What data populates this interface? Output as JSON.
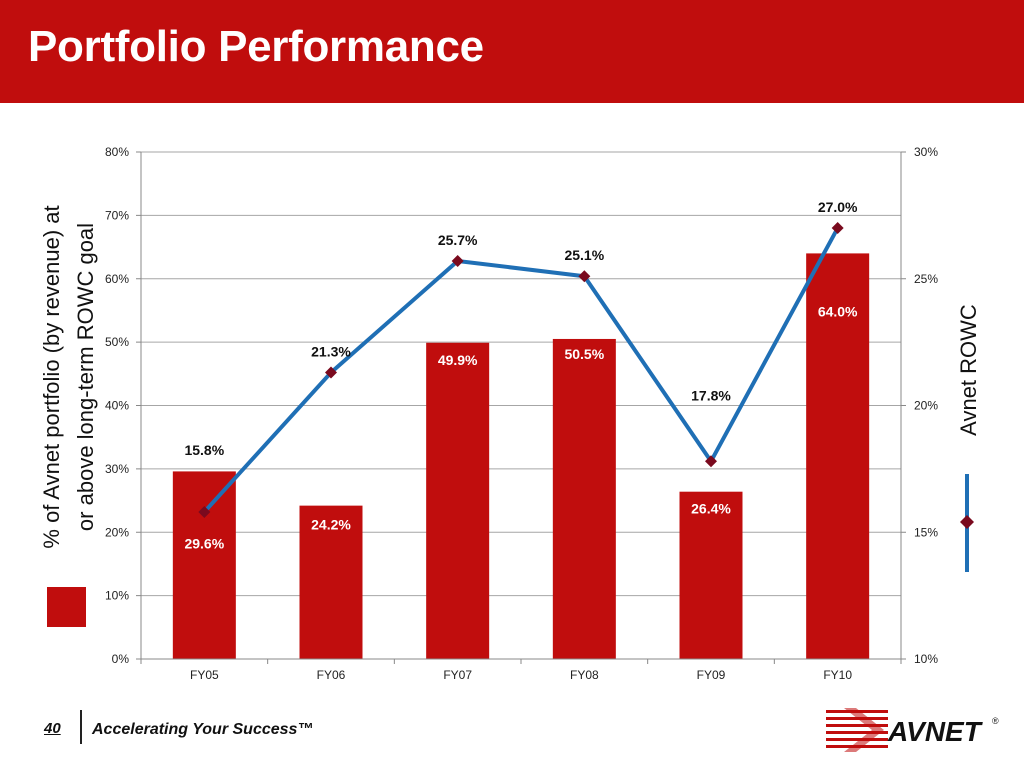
{
  "slide": {
    "title": "Portfolio Performance",
    "page_number": "40",
    "tagline": "Accelerating Your Success™",
    "brand": "AVNET"
  },
  "colors": {
    "header": "#c00d0d",
    "bar": "#c00d0d",
    "line": "#1f6fb5",
    "marker": "#7a0a1e",
    "grid": "#a6a6a6"
  },
  "chart_data": {
    "type": "bar+line",
    "categories": [
      "FY05",
      "FY06",
      "FY07",
      "FY08",
      "FY09",
      "FY10"
    ],
    "bars": {
      "axis_title": "% of Avnet portfolio (by revenue) at or above long-term ROWC goal",
      "axis_title_lines": [
        "% of Avnet portfolio (by revenue) at",
        "or above long-term ROWC goal"
      ],
      "values": [
        29.6,
        24.2,
        49.9,
        50.5,
        26.4,
        64.0
      ],
      "labels": [
        "29.6%",
        "24.2%",
        "49.9%",
        "50.5%",
        "26.4%",
        "64.0%"
      ],
      "axis": {
        "min": 0,
        "max": 80,
        "step": 10,
        "ticks": [
          "0%",
          "10%",
          "20%",
          "30%",
          "40%",
          "50%",
          "60%",
          "70%",
          "80%"
        ]
      }
    },
    "line": {
      "axis_title": "Avnet  ROWC",
      "values": [
        15.8,
        21.3,
        25.7,
        25.1,
        17.8,
        27.0
      ],
      "labels": [
        "15.8%",
        "21.3%",
        "25.7%",
        "25.1%",
        "17.8%",
        "27.0%"
      ],
      "axis": {
        "min": 10,
        "max": 30,
        "step": 5,
        "ticks": [
          "10%",
          "15%",
          "20%",
          "25%",
          "30%"
        ]
      }
    },
    "grid": true,
    "legend": "left and right of plot, vertical"
  }
}
